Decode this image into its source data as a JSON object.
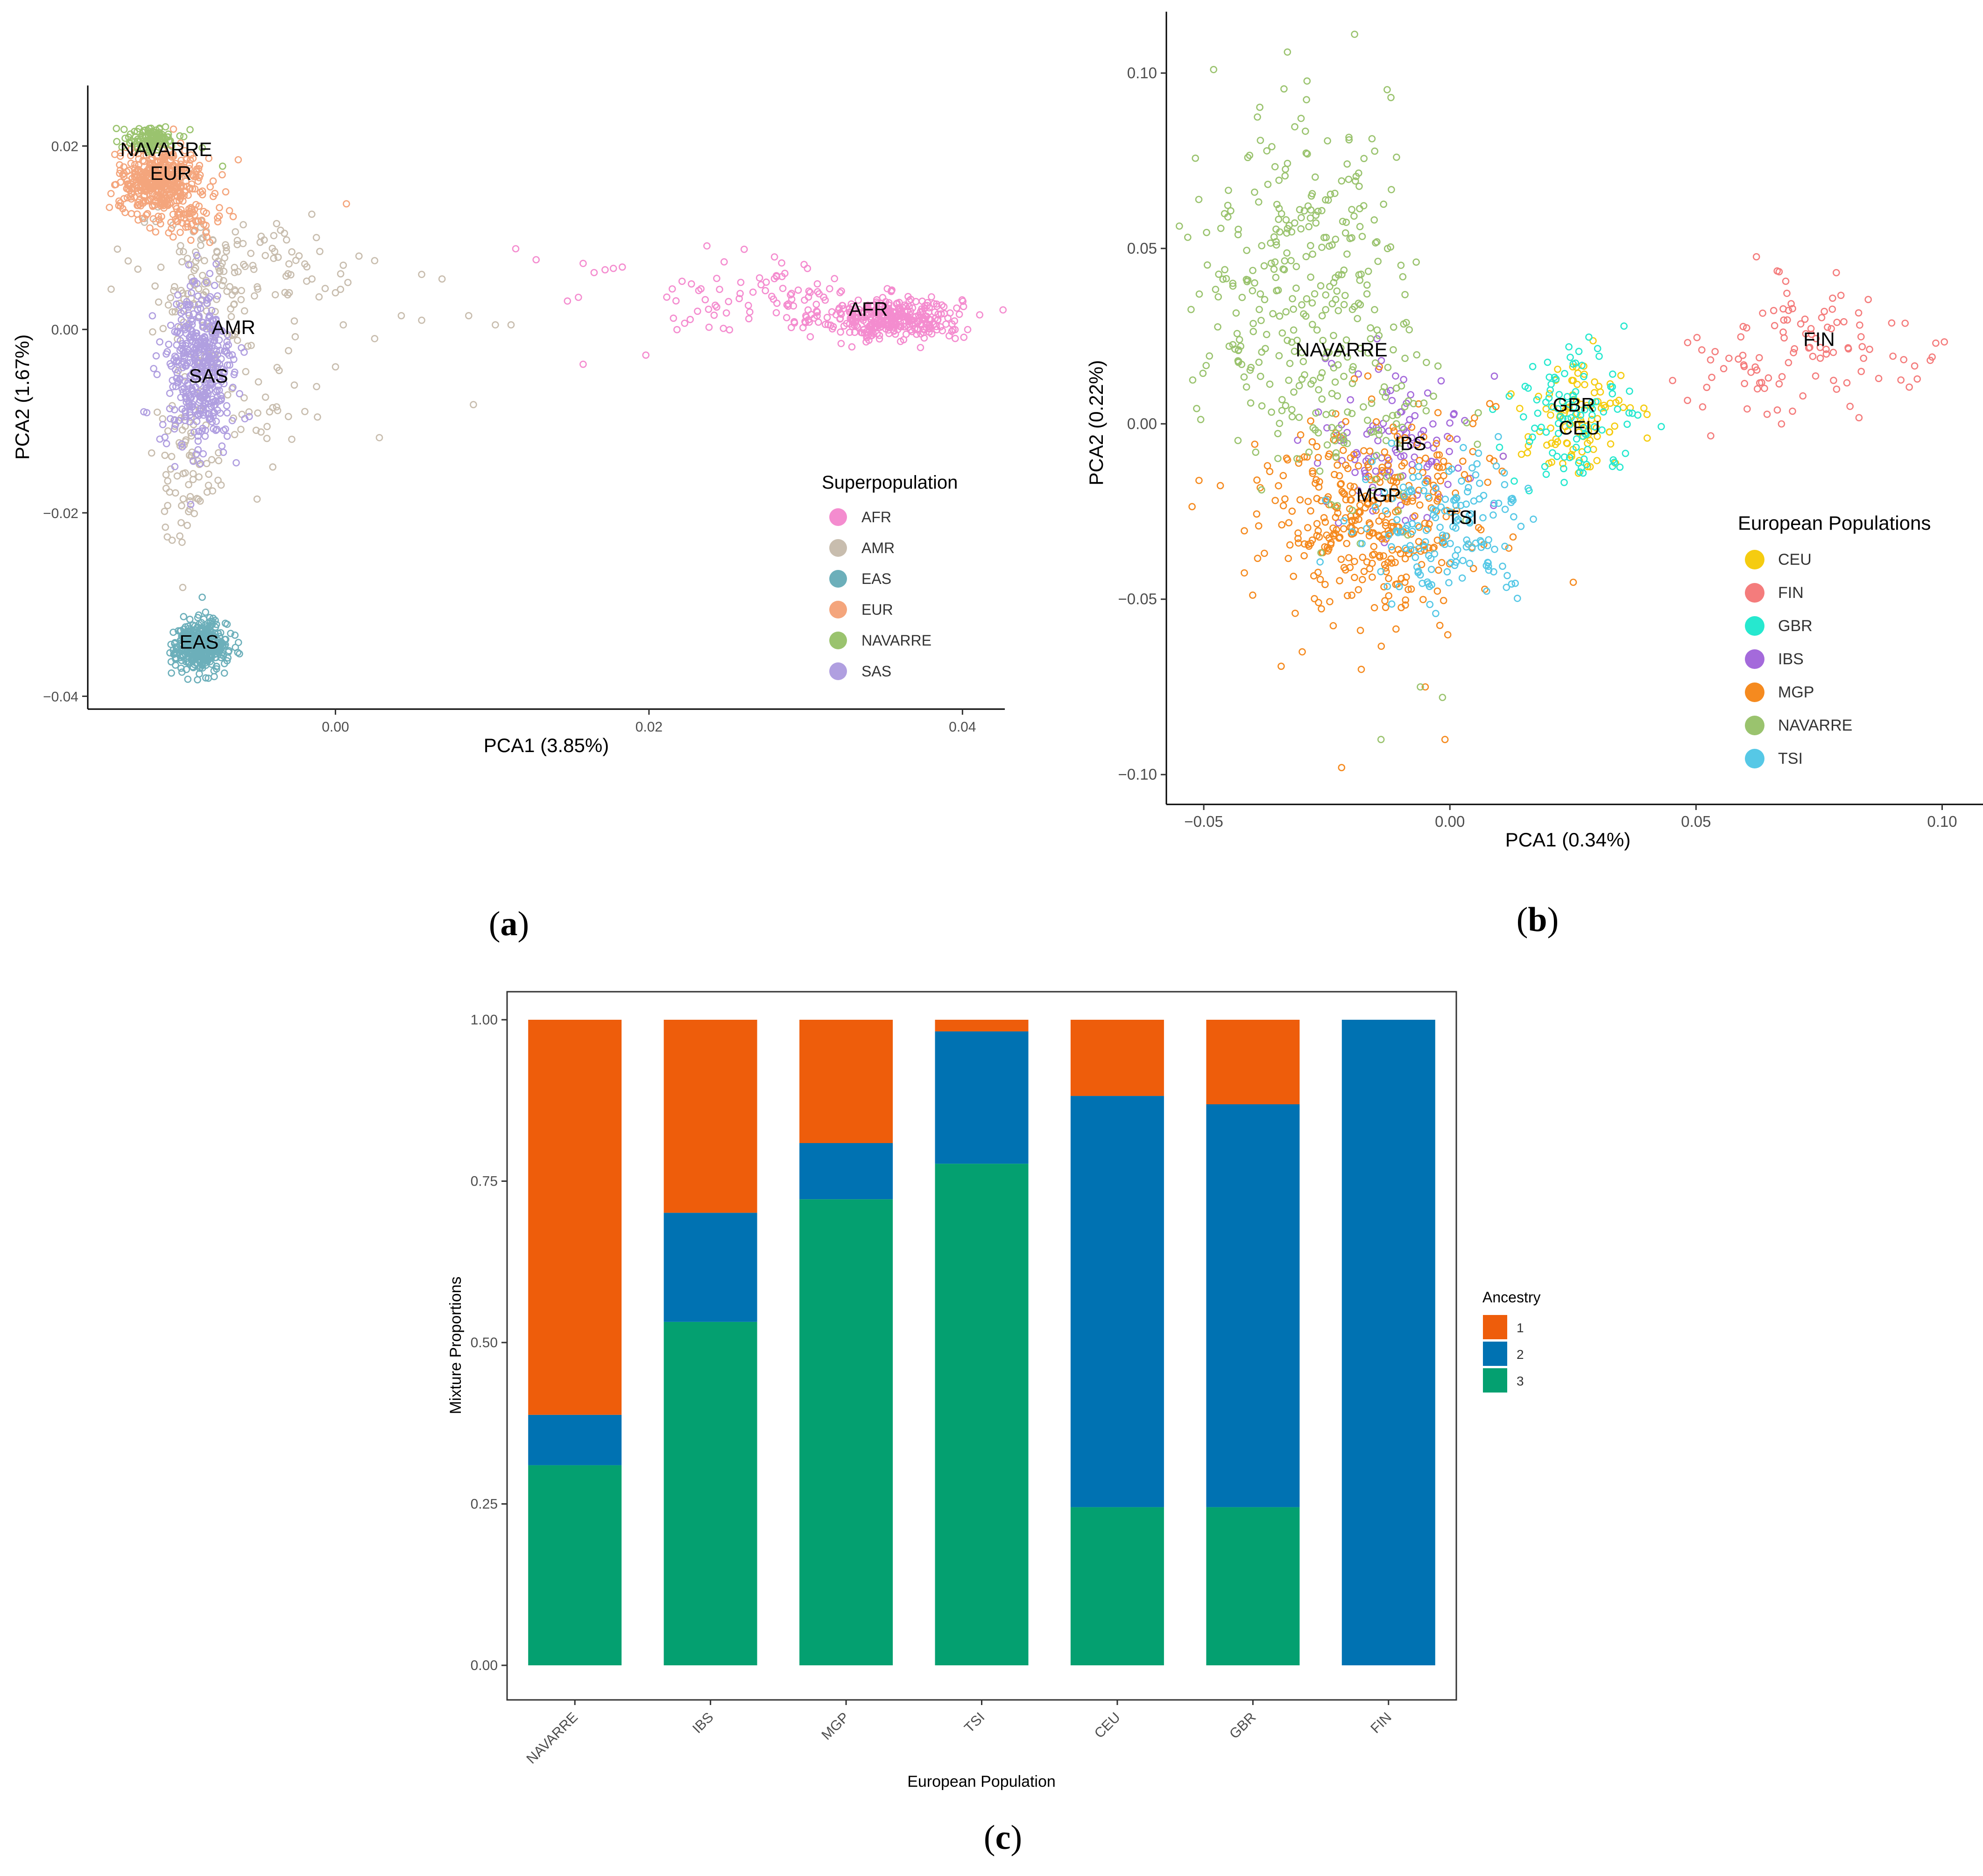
{
  "panels": [
    {
      "id": "a",
      "open": "(",
      "letter": "a",
      "close": ")"
    },
    {
      "id": "b",
      "open": "(",
      "letter": "b",
      "close": ")"
    },
    {
      "id": "c",
      "open": "(",
      "letter": "c",
      "close": ")"
    }
  ],
  "chart_data": [
    {
      "id": "a",
      "type": "scatter",
      "xlabel": "PCA1 (3.85%)",
      "ylabel": "PCA2 (1.67%)",
      "xlim": [
        -0.0158,
        0.0427
      ],
      "ylim": [
        -0.0414,
        0.0266
      ],
      "xticks": [
        0.0,
        0.02,
        0.04
      ],
      "xtick_labels": [
        "0.00",
        "0.02",
        "0.04"
      ],
      "yticks": [
        -0.04,
        -0.02,
        0.0,
        0.02
      ],
      "ytick_labels": [
        "−0.04",
        "−0.02",
        "0.00",
        "0.02"
      ],
      "legend": {
        "title": "Superpopulation",
        "position": "right"
      },
      "series": [
        {
          "name": "AFR",
          "color": "#F48CCF",
          "label": "AFR",
          "label_at": [
            0.034,
            0.0015
          ],
          "clusters": [
            {
              "center": [
                0.0355,
                0.0012
              ],
              "spread": [
                0.0022,
                0.0012
              ],
              "n": 340
            },
            {
              "center": [
                0.028,
                0.0035
              ],
              "spread": [
                0.004,
                0.002
              ],
              "n": 90
            }
          ],
          "points": [
            [
              0.0115,
              0.0088
            ],
            [
              0.0128,
              0.0076
            ],
            [
              0.0158,
              0.0072
            ],
            [
              0.0165,
              0.0062
            ],
            [
              0.0172,
              0.0065
            ],
            [
              0.0183,
              0.0068
            ],
            [
              0.0155,
              0.0035
            ],
            [
              0.0148,
              0.0031
            ],
            [
              0.0158,
              -0.0038
            ],
            [
              0.0198,
              -0.0028
            ]
          ]
        },
        {
          "name": "AMR",
          "color": "#C8BDAE",
          "label": "AMR",
          "label_at": [
            -0.0065,
            -0.0005
          ],
          "clusters": [
            {
              "center": [
                -0.0085,
                0.0045
              ],
              "spread": [
                0.002,
                0.004
              ],
              "n": 110
            },
            {
              "center": [
                -0.0095,
                -0.015
              ],
              "spread": [
                0.0012,
                0.004
              ],
              "n": 70
            },
            {
              "center": [
                -0.005,
                0.0075
              ],
              "spread": [
                0.0025,
                0.002
              ],
              "n": 60
            },
            {
              "center": [
                -0.0055,
                -0.007
              ],
              "spread": [
                0.0025,
                0.004
              ],
              "n": 50
            }
          ],
          "points": [
            [
              -0.001,
              0.0085
            ],
            [
              0.0005,
              0.007
            ],
            [
              0.0015,
              0.008
            ],
            [
              0.0025,
              0.0075
            ],
            [
              -0.0015,
              0.0055
            ],
            [
              0.0,
              0.004
            ],
            [
              0.0005,
              0.0005
            ],
            [
              0.0042,
              0.0015
            ],
            [
              0.0055,
              0.001
            ],
            [
              0.0025,
              -0.001
            ],
            [
              0.0085,
              0.0015
            ],
            [
              0.0102,
              0.0005
            ],
            [
              0.0112,
              0.0005
            ],
            [
              0.0055,
              0.006
            ],
            [
              0.0068,
              0.0055
            ],
            [
              0.0028,
              -0.0118
            ],
            [
              0.0088,
              -0.0082
            ],
            [
              -0.004,
              -0.015
            ],
            [
              -0.003,
              -0.0095
            ],
            [
              -0.005,
              -0.0185
            ]
          ]
        },
        {
          "name": "EAS",
          "color": "#6CAFBA",
          "label": "EAS",
          "label_at": [
            -0.0087,
            -0.0348
          ],
          "clusters": [
            {
              "center": [
                -0.0086,
                -0.0345
              ],
              "spread": [
                0.00085,
                0.0013
              ],
              "n": 380
            }
          ],
          "points": [
            [
              -0.0085,
              -0.0292
            ],
            [
              -0.0088,
              -0.0382
            ],
            [
              -0.0102,
              -0.0358
            ],
            [
              -0.007,
              -0.0338
            ]
          ]
        },
        {
          "name": "EUR",
          "color": "#F4A57C",
          "label": "EUR",
          "label_at": [
            -0.0105,
            0.0163
          ],
          "clusters": [
            {
              "center": [
                -0.0112,
                0.0162
              ],
              "spread": [
                0.0013,
                0.0017
              ],
              "n": 420
            },
            {
              "center": [
                -0.0095,
                0.0118
              ],
              "spread": [
                0.0012,
                0.0012
              ],
              "n": 60
            }
          ],
          "points": [
            [
              -0.0062,
              0.0185
            ],
            [
              0.0007,
              0.0137
            ],
            [
              -0.0078,
              0.0145
            ],
            [
              -0.007,
              0.015
            ]
          ]
        },
        {
          "name": "NAVARRE",
          "color": "#9AC36E",
          "label": "NAVARRE",
          "label_at": [
            -0.0108,
            0.0189
          ],
          "clusters": [
            {
              "center": [
                -0.0118,
                0.0208
              ],
              "spread": [
                0.0008,
                0.0007
              ],
              "n": 110
            }
          ],
          "points": [
            [
              -0.0072,
              0.0178
            ],
            [
              -0.0085,
              0.0198
            ]
          ]
        },
        {
          "name": "SAS",
          "color": "#B09FE0",
          "label": "SAS",
          "label_at": [
            -0.0081,
            -0.0058
          ],
          "clusters": [
            {
              "center": [
                -0.0087,
                -0.0045
              ],
              "spread": [
                0.0011,
                0.0045
              ],
              "n": 430
            }
          ],
          "points": [
            [
              -0.0055,
              -0.0095
            ],
            [
              -0.006,
              -0.002
            ],
            [
              -0.0098,
              -0.0125
            ]
          ]
        }
      ]
    },
    {
      "id": "b",
      "type": "scatter",
      "xlabel": "PCA1 (0.34%)",
      "ylabel": "PCA2 (0.22%)",
      "xlim": [
        -0.0576,
        0.1083
      ],
      "ylim": [
        -0.1085,
        0.1175
      ],
      "xticks": [
        -0.05,
        0.0,
        0.05,
        0.1
      ],
      "xtick_labels": [
        "−0.05",
        "0.00",
        "0.05",
        "0.10"
      ],
      "yticks": [
        -0.1,
        -0.05,
        0.0,
        0.05,
        0.1
      ],
      "ytick_labels": [
        "−0.10",
        "−0.05",
        "0.00",
        "0.05",
        "0.10"
      ],
      "legend": {
        "title": "European Populations",
        "position": "right"
      },
      "series": [
        {
          "name": "CEU",
          "color": "#F5CC10",
          "label": "CEU",
          "label_at": [
            0.0263,
            -0.003
          ],
          "clusters": [
            {
              "center": [
                0.026,
                0.001
              ],
              "spread": [
                0.006,
                0.008
              ],
              "n": 100
            }
          ],
          "points": []
        },
        {
          "name": "FIN",
          "color": "#F47C7C",
          "label": "FIN",
          "label_at": [
            0.075,
            0.0222
          ],
          "clusters": [
            {
              "center": [
                0.078,
                0.022
              ],
              "spread": [
                0.012,
                0.01
              ],
              "n": 90
            },
            {
              "center": [
                0.058,
                0.012
              ],
              "spread": [
                0.006,
                0.008
              ],
              "n": 20
            }
          ],
          "points": []
        },
        {
          "name": "GBR",
          "color": "#26E8CF",
          "label": "GBR",
          "label_at": [
            0.0252,
            0.0035
          ],
          "clusters": [
            {
              "center": [
                0.024,
                0.003
              ],
              "spread": [
                0.006,
                0.009
              ],
              "n": 100
            }
          ],
          "points": []
        },
        {
          "name": "IBS",
          "color": "#A46ADB",
          "label": "IBS",
          "label_at": [
            -0.008,
            -0.0075
          ],
          "clusters": [
            {
              "center": [
                -0.01,
                -0.005
              ],
              "spread": [
                0.008,
                0.012
              ],
              "n": 110
            }
          ],
          "points": []
        },
        {
          "name": "MGP",
          "color": "#F58A1F",
          "label": "MGP",
          "label_at": [
            -0.0145,
            -0.0222
          ],
          "clusters": [
            {
              "center": [
                -0.016,
                -0.025
              ],
              "spread": [
                0.011,
                0.015
              ],
              "n": 380
            }
          ],
          "points": [
            [
              -0.022,
              -0.098
            ],
            [
              -0.018,
              -0.07
            ],
            [
              -0.005,
              -0.075
            ],
            [
              -0.001,
              -0.09
            ],
            [
              -0.03,
              -0.065
            ]
          ]
        },
        {
          "name": "NAVARRE",
          "color": "#9AC36E",
          "label": "NAVARRE",
          "label_at": [
            -0.022,
            0.0192
          ],
          "clusters": [
            {
              "center": [
                -0.032,
                0.045
              ],
              "spread": [
                0.01,
                0.022
              ],
              "n": 260
            },
            {
              "center": [
                -0.018,
                0.005
              ],
              "spread": [
                0.01,
                0.015
              ],
              "n": 110
            }
          ],
          "points": [
            [
              -0.048,
              0.101
            ],
            [
              -0.033,
              0.106
            ],
            [
              -0.006,
              -0.075
            ],
            [
              -0.014,
              -0.09
            ],
            [
              -0.0015,
              -0.078
            ]
          ]
        },
        {
          "name": "TSI",
          "color": "#56C8E6",
          "label": "TSI",
          "label_at": [
            0.0025,
            -0.0285
          ],
          "clusters": [
            {
              "center": [
                0.0,
                -0.03
              ],
              "spread": [
                0.009,
                0.01
              ],
              "n": 160
            }
          ],
          "points": []
        }
      ]
    },
    {
      "id": "c",
      "type": "bar",
      "stacked": true,
      "xlabel": "European Population",
      "ylabel": "Mixture Proportions",
      "ylim": [
        0,
        1
      ],
      "yticks": [
        0,
        0.25,
        0.5,
        0.75,
        1
      ],
      "ytick_labels": [
        "0.00",
        "0.25",
        "0.50",
        "0.75",
        "1.00"
      ],
      "categories": [
        "NAVARRE",
        "IBS",
        "MGP",
        "TSI",
        "CEU",
        "GBR",
        "FIN"
      ],
      "legend": {
        "title": "Ancestry",
        "position": "right"
      },
      "series": [
        {
          "name": "3",
          "color": "#04A070",
          "values": [
            0.31,
            0.532,
            0.722,
            0.777,
            0.245,
            0.245,
            0.0
          ]
        },
        {
          "name": "2",
          "color": "#0072B2",
          "values": [
            0.078,
            0.169,
            0.087,
            0.205,
            0.637,
            0.624,
            1.0
          ]
        },
        {
          "name": "1",
          "color": "#EE5D0B",
          "values": [
            0.612,
            0.299,
            0.191,
            0.018,
            0.118,
            0.131,
            0.0
          ]
        }
      ],
      "legend_order": [
        "1",
        "2",
        "3"
      ]
    }
  ]
}
